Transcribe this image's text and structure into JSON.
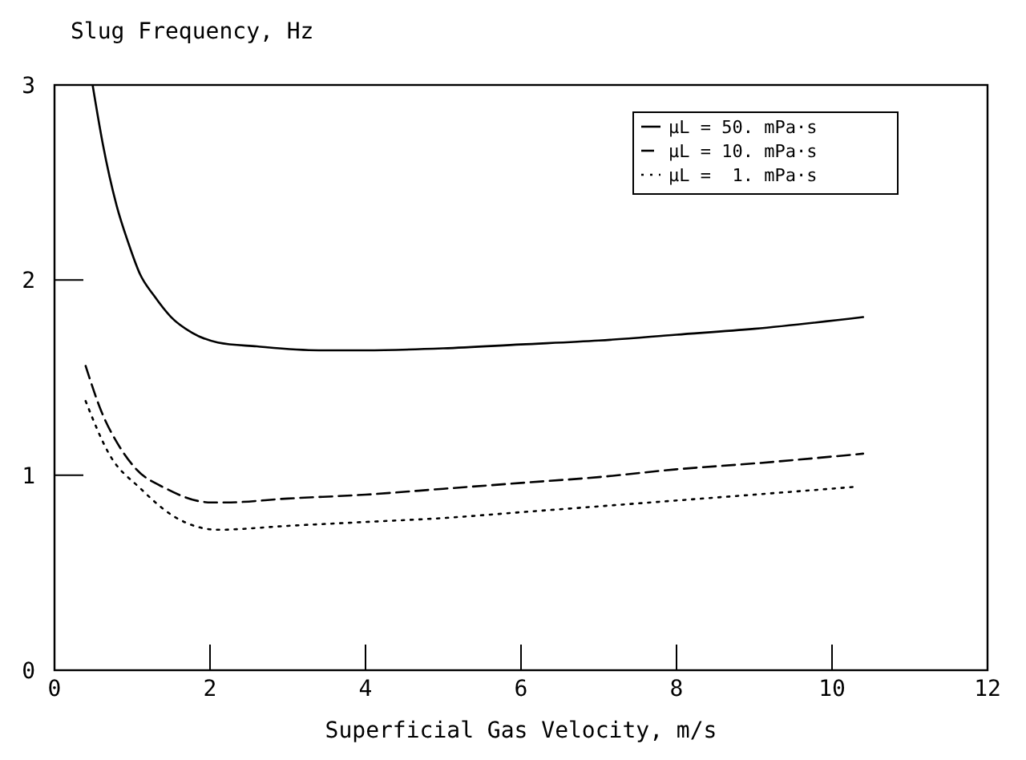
{
  "chart_data": {
    "type": "line",
    "ylabel": "Slug Frequency, Hz",
    "xlabel": "Superficial Gas Velocity, m/s",
    "xlim": [
      0,
      12
    ],
    "ylim": [
      0,
      3
    ],
    "xticks": [
      0,
      2,
      4,
      6,
      8,
      10,
      12
    ],
    "yticks": [
      0,
      1,
      2,
      3
    ],
    "legend": "top right",
    "grid": false,
    "series": [
      {
        "name": "μL = 50. mPa·s",
        "color": "#000000",
        "line_style": "solid",
        "x": [
          0.49,
          0.62,
          0.8,
          0.95,
          1.1,
          1.28,
          1.5,
          1.77,
          2.1,
          2.6,
          3.4,
          4,
          5,
          6,
          7,
          8,
          9,
          10.4
        ],
        "values": [
          3.0,
          2.7,
          2.38,
          2.19,
          2.03,
          1.92,
          1.81,
          1.73,
          1.68,
          1.66,
          1.64,
          1.64,
          1.65,
          1.67,
          1.69,
          1.72,
          1.75,
          1.81
        ]
      },
      {
        "name": "μL = 10. mPa·s",
        "color": "#000000",
        "line_style": "dashed",
        "x": [
          0.4,
          0.62,
          0.8,
          1.03,
          1.44,
          2.02,
          2.2,
          3,
          4,
          5,
          6,
          7,
          8,
          9,
          10.4
        ],
        "values": [
          1.56,
          1.31,
          1.17,
          1.04,
          0.93,
          0.86,
          0.86,
          0.88,
          0.9,
          0.93,
          0.96,
          0.99,
          1.03,
          1.06,
          1.11
        ]
      },
      {
        "name": "μL =  1. mPa·s",
        "color": "#000000",
        "line_style": "dotted",
        "x": [
          0.4,
          0.7,
          1.11,
          1.53,
          2.1,
          3,
          4,
          5,
          6,
          7,
          8,
          9,
          10.3
        ],
        "values": [
          1.38,
          1.11,
          0.93,
          0.79,
          0.72,
          0.74,
          0.76,
          0.78,
          0.81,
          0.84,
          0.87,
          0.9,
          0.94
        ]
      }
    ]
  }
}
